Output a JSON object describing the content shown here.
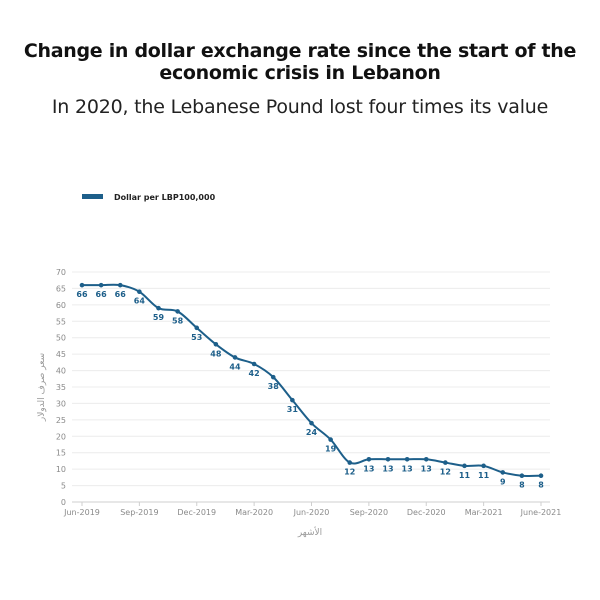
{
  "title": "Change in dollar exchange rate since the start of the economic crisis in Lebanon",
  "subtitle": "In 2020, the Lebanese Pound lost four times its value",
  "chart_data": {
    "type": "line",
    "title": "Change in dollar exchange rate since the start of the economic crisis in Lebanon",
    "subtitle": "In 2020, the Lebanese Pound lost four times its value",
    "xlabel": "الأشهر",
    "ylabel": "سعر صرف الدولار",
    "ylim": [
      0,
      70
    ],
    "yticks": [
      0,
      5,
      10,
      15,
      20,
      25,
      30,
      35,
      40,
      45,
      50,
      55,
      60,
      65,
      70
    ],
    "x": [
      "2019-06",
      "2019-07",
      "2019-08",
      "2019-09",
      "2019-10",
      "2019-11",
      "2019-12",
      "2020-01",
      "2020-02",
      "2020-03",
      "2020-04",
      "2020-05",
      "2020-06",
      "2020-07",
      "2020-08",
      "2020-09",
      "2020-10",
      "2020-11",
      "2020-12",
      "2021-01",
      "2021-02",
      "2021-03",
      "2021-04",
      "2021-05",
      "2021-06"
    ],
    "xtick_labels": [
      "Jun-2019",
      "Sep-2019",
      "Dec-2019",
      "Mar-2020",
      "Jun-2020",
      "Sep-2020",
      "Dec-2020",
      "Mar-2021",
      "June-2021"
    ],
    "xtick_positions": [
      0,
      3,
      6,
      9,
      12,
      15,
      18,
      21,
      24
    ],
    "grid": true,
    "legend": "top-left",
    "series": [
      {
        "name": "Dollar per LBP100,000",
        "color": "#1d5f8a",
        "values": [
          66,
          66,
          66,
          64,
          59,
          58,
          53,
          48,
          44,
          42,
          38,
          31,
          24,
          19,
          12,
          13,
          13,
          13,
          13,
          12,
          11,
          11,
          9,
          8,
          8
        ]
      }
    ]
  }
}
